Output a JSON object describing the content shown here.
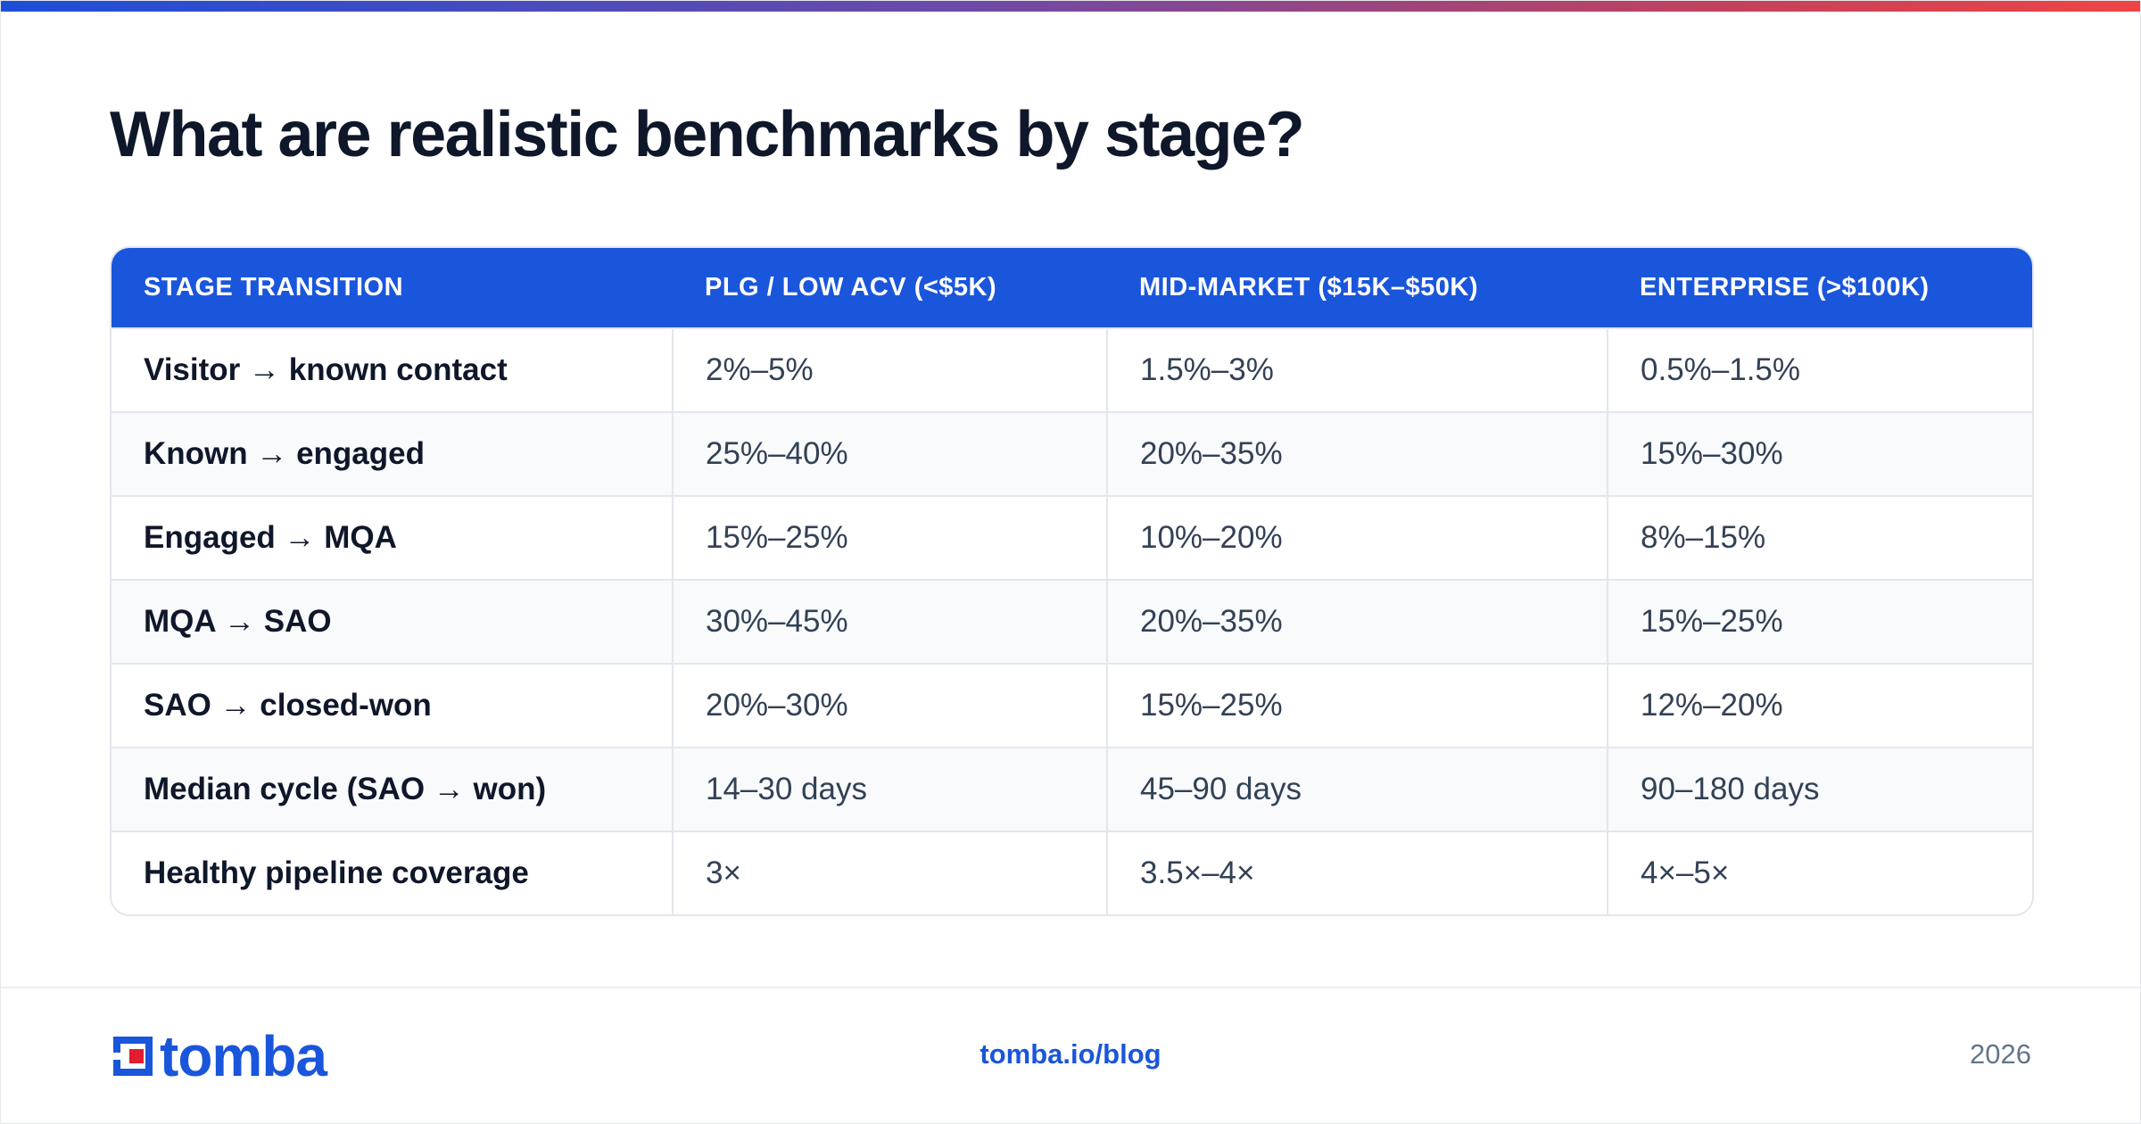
{
  "title": "What are realistic benchmarks by stage?",
  "table": {
    "headers": [
      "STAGE TRANSITION",
      "PLG / LOW ACV (<$5K)",
      "MID-MARKET ($15K–$50K)",
      "ENTERPRISE (>$100K)"
    ],
    "rows": [
      [
        "Visitor → known contact",
        "2%–5%",
        "1.5%–3%",
        "0.5%–1.5%"
      ],
      [
        "Known → engaged",
        "25%–40%",
        "20%–35%",
        "15%–30%"
      ],
      [
        "Engaged → MQA",
        "15%–25%",
        "10%–20%",
        "8%–15%"
      ],
      [
        "MQA → SAO",
        "30%–45%",
        "20%–35%",
        "15%–25%"
      ],
      [
        "SAO → closed-won",
        "20%–30%",
        "15%–25%",
        "12%–20%"
      ],
      [
        "Median cycle (SAO → won)",
        "14–30 days",
        "45–90 days",
        "90–180 days"
      ],
      [
        "Healthy pipeline coverage",
        "3×",
        "3.5×–4×",
        "4×–5×"
      ]
    ]
  },
  "footer": {
    "logo_text": "tomba",
    "link": "tomba.io/blog",
    "year": "2026"
  },
  "colors": {
    "accent": "#1a56db",
    "logo_red": "#e11d2e"
  }
}
